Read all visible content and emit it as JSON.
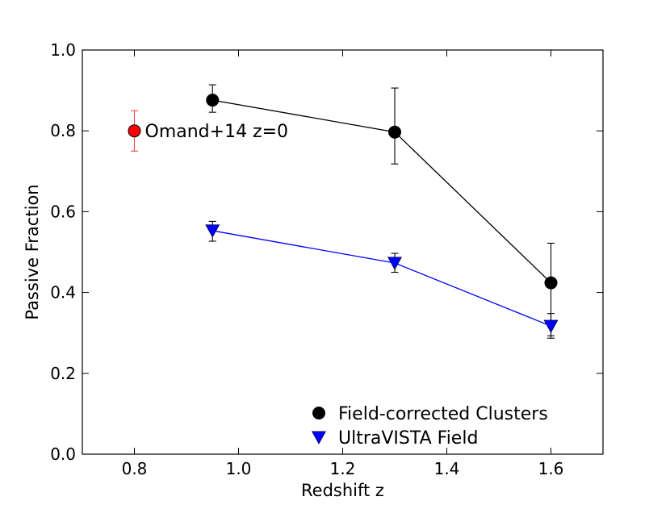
{
  "chart_data": {
    "type": "scatter",
    "xlabel": "Redshift z",
    "ylabel": "Passive Fraction",
    "xlim": [
      0.7,
      1.7
    ],
    "ylim": [
      0.0,
      1.0
    ],
    "xticks": [
      0.8,
      1.0,
      1.2,
      1.4,
      1.6
    ],
    "xtick_labels": [
      "0.8",
      "1.0",
      "1.2",
      "1.4",
      "1.6"
    ],
    "yticks": [
      0.0,
      0.2,
      0.4,
      0.6,
      0.8,
      1.0
    ],
    "ytick_labels": [
      "0.0",
      "0.2",
      "0.4",
      "0.6",
      "0.8",
      "1.0"
    ],
    "grid": false,
    "legend_position": "lower-right",
    "series": [
      {
        "name": "Field-corrected Clusters",
        "marker": "circle",
        "color": "#000000",
        "line": true,
        "points": [
          {
            "x": 0.95,
            "y": 0.876,
            "ylo": 0.846,
            "yhi": 0.914
          },
          {
            "x": 1.3,
            "y": 0.797,
            "ylo": 0.718,
            "yhi": 0.906
          },
          {
            "x": 1.6,
            "y": 0.424,
            "ylo": 0.293,
            "yhi": 0.522
          }
        ]
      },
      {
        "name": "UltraVISTA Field",
        "marker": "triangle-down",
        "color": "#0000ff",
        "line": true,
        "points": [
          {
            "x": 0.95,
            "y": 0.553,
            "ylo": 0.527,
            "yhi": 0.576
          },
          {
            "x": 1.3,
            "y": 0.473,
            "ylo": 0.45,
            "yhi": 0.497
          },
          {
            "x": 1.6,
            "y": 0.317,
            "ylo": 0.287,
            "yhi": 0.348
          }
        ]
      }
    ],
    "annotation": {
      "text": "Omand+14 z=0",
      "marker": "circle",
      "color": "#ff0000",
      "errcolor": "#ff4444",
      "x": 0.8,
      "y": 0.8,
      "ylo": 0.75,
      "yhi": 0.85
    }
  }
}
